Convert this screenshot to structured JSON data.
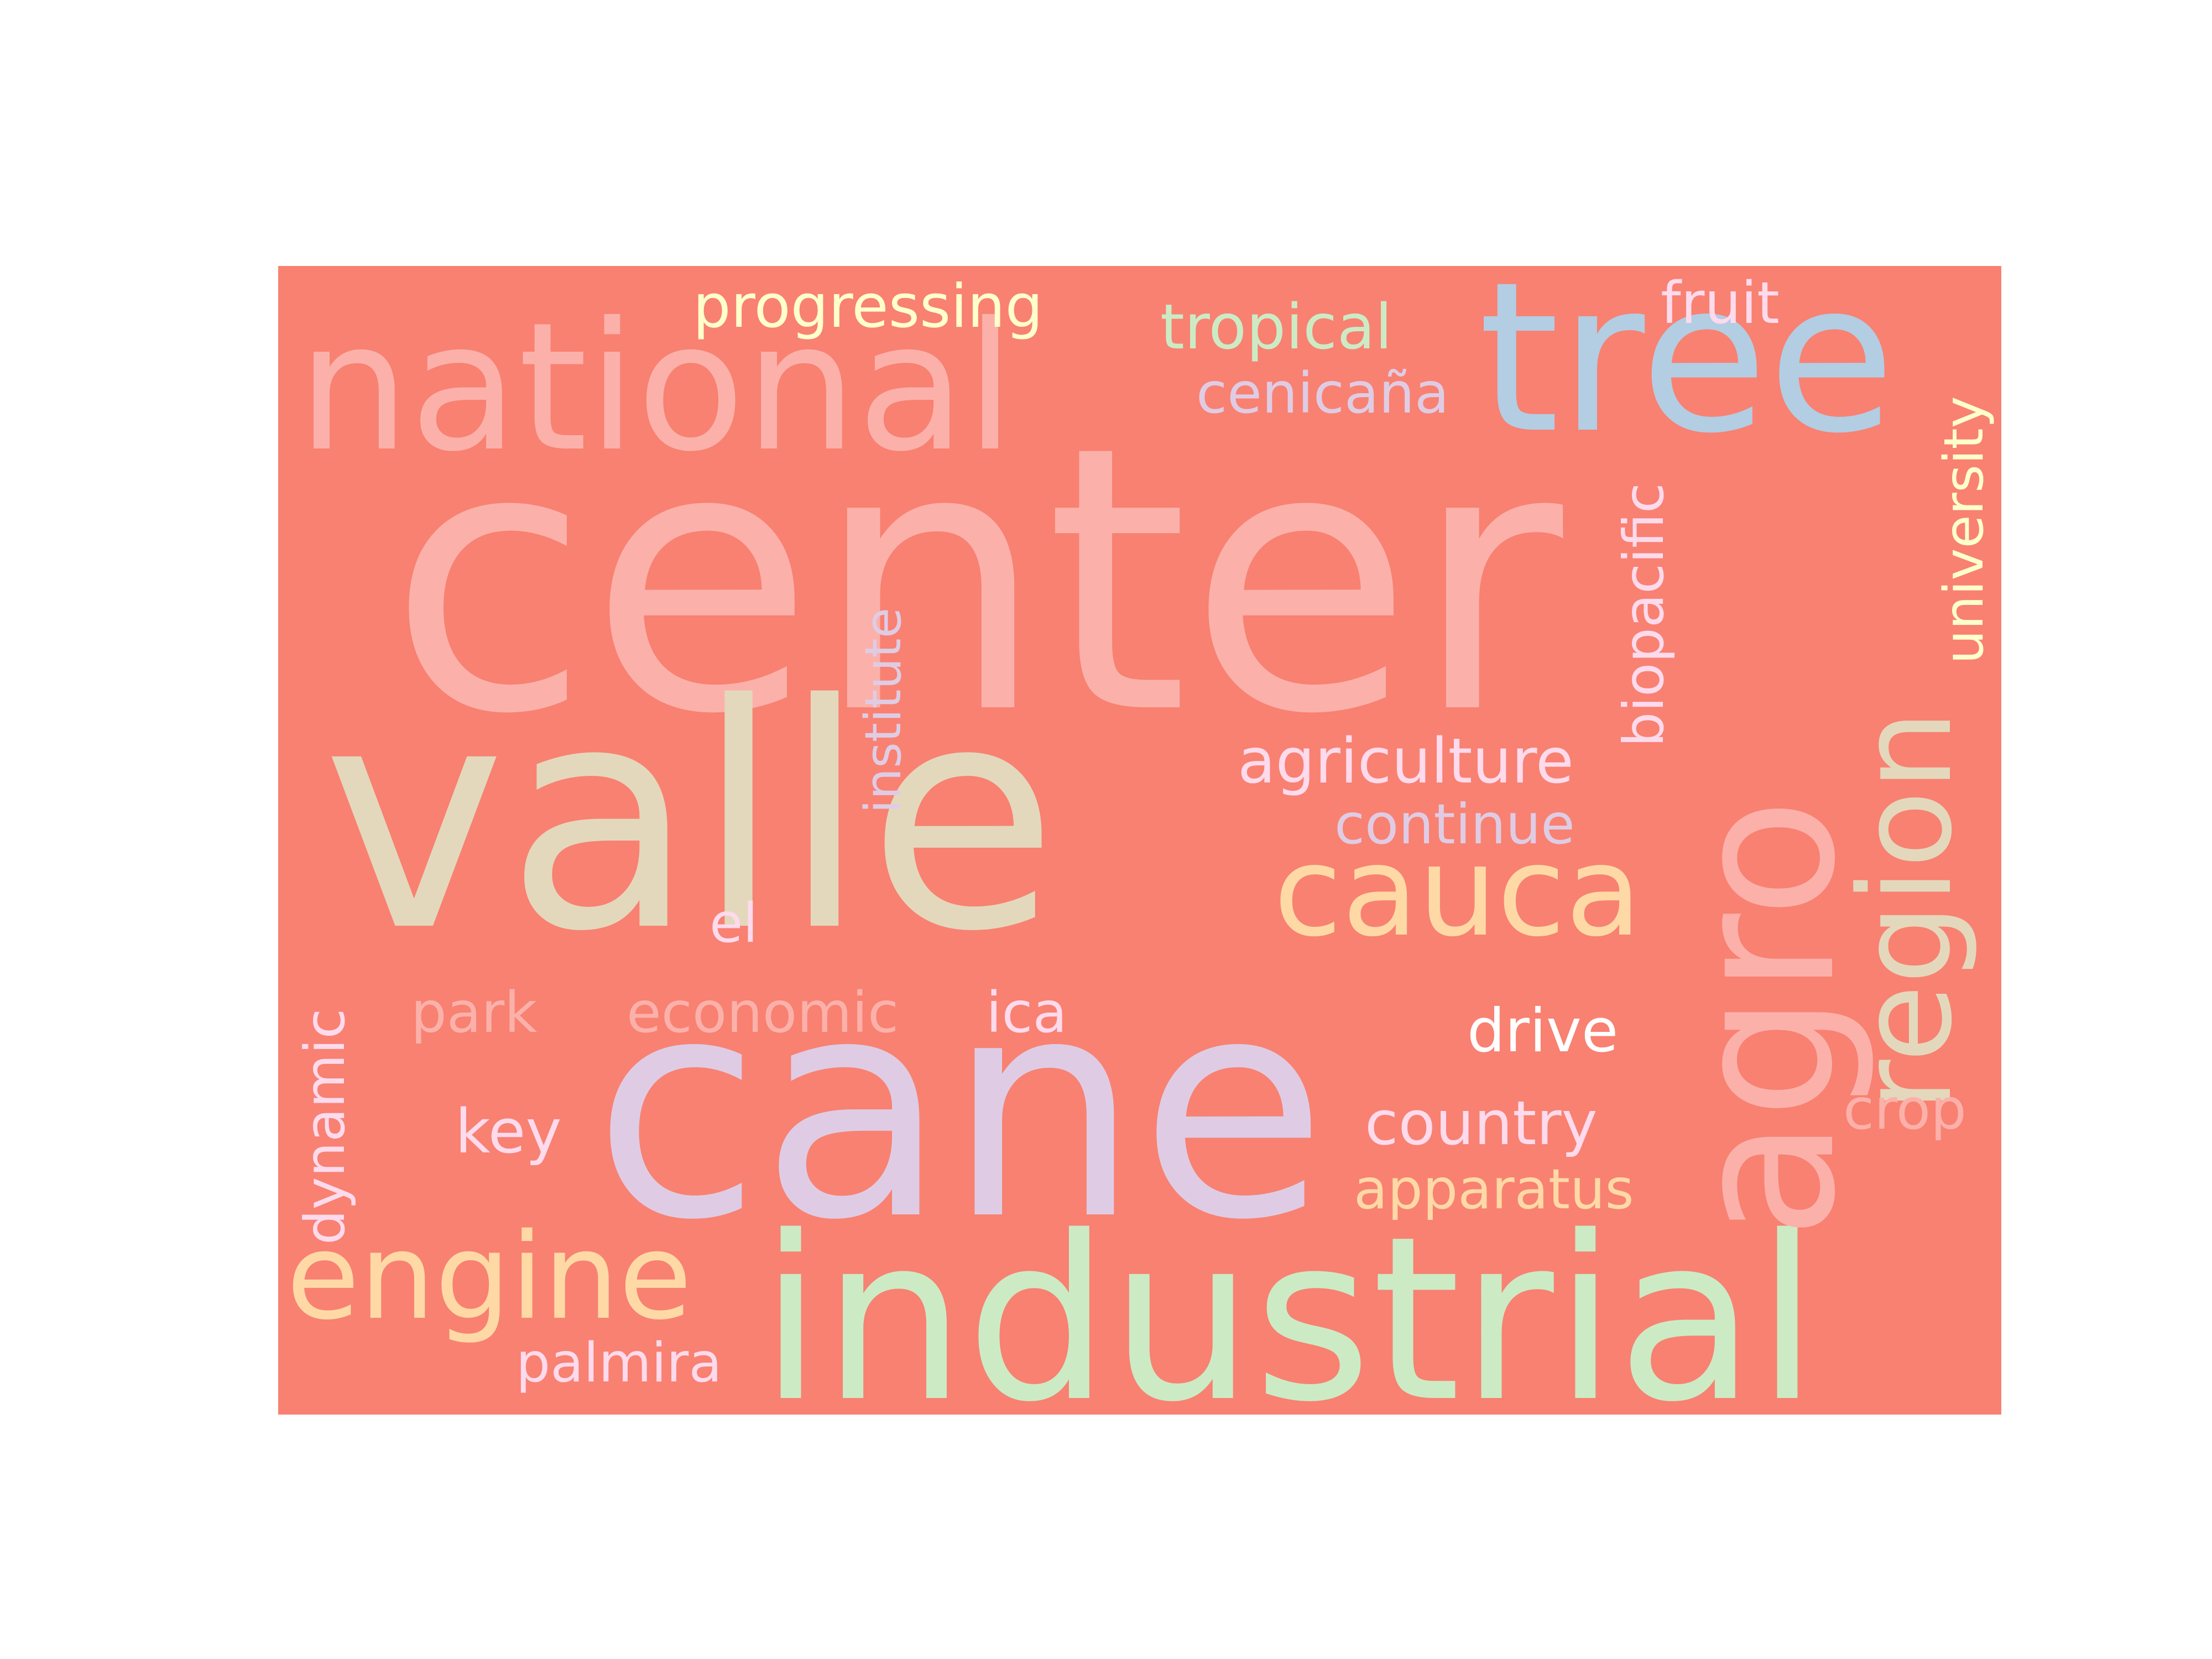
{
  "words": {
    "center": {
      "text": "center",
      "color": "#fbb1aa"
    },
    "valle": {
      "text": "valle",
      "color": "#e4d8bc"
    },
    "cane": {
      "text": "cane",
      "color": "#dfcce4"
    },
    "industrial": {
      "text": "industrial",
      "color": "#ccebc5"
    },
    "national": {
      "text": "national",
      "color": "#fbb1aa"
    },
    "tree": {
      "text": "tree",
      "color": "#b3cde3"
    },
    "agro": {
      "text": "agro",
      "color": "#fbb1aa"
    },
    "region": {
      "text": "region",
      "color": "#e4d8bc"
    },
    "cauca": {
      "text": "cauca",
      "color": "#fed9a6"
    },
    "engine": {
      "text": "engine",
      "color": "#fed9a6"
    },
    "progressing": {
      "text": "progressing",
      "color": "#ffffcc"
    },
    "tropical": {
      "text": "tropical",
      "color": "#ccebc5"
    },
    "fruit": {
      "text": "fruit",
      "color": "#fddaec"
    },
    "cenicana": {
      "text": "cenicaña",
      "color": "#dfcce4"
    },
    "university": {
      "text": "university",
      "color": "#ffffcc"
    },
    "biopacific": {
      "text": "biopacific",
      "color": "#fddaec"
    },
    "institute": {
      "text": "institute",
      "color": "#dfcce4"
    },
    "agriculture": {
      "text": "agriculture",
      "color": "#fddaec"
    },
    "continue": {
      "text": "continue",
      "color": "#dfcce4"
    },
    "el": {
      "text": "el",
      "color": "#fddaec"
    },
    "park": {
      "text": "park",
      "color": "#fbb1aa"
    },
    "economic": {
      "text": "economic",
      "color": "#fbb1aa"
    },
    "ica": {
      "text": "ica",
      "color": "#fddaec"
    },
    "drive": {
      "text": "drive",
      "color": "#ffffff"
    },
    "dynamic": {
      "text": "dynamic",
      "color": "#fddaec"
    },
    "key": {
      "text": "key",
      "color": "#fddaec"
    },
    "country": {
      "text": "country",
      "color": "#fddaec"
    },
    "crop": {
      "text": "crop",
      "color": "#fbb1aa"
    },
    "apparatus": {
      "text": "apparatus",
      "color": "#fed9a6"
    },
    "palmira": {
      "text": "palmira",
      "color": "#fddaec"
    }
  }
}
